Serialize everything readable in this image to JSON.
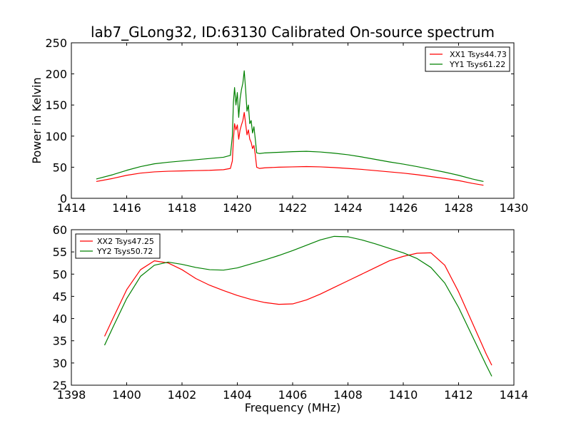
{
  "chart_data": [
    {
      "type": "line",
      "title": "lab7_GLong32, ID:63130 Calibrated On-source spectrum",
      "xlabel": "",
      "ylabel": "Power in Kelvin",
      "xlim": [
        1414,
        1430
      ],
      "ylim": [
        0,
        250
      ],
      "xticks": [
        1414,
        1416,
        1418,
        1420,
        1422,
        1424,
        1426,
        1428,
        1430
      ],
      "yticks": [
        0,
        50,
        100,
        150,
        200,
        250
      ],
      "legend_position": "top-right",
      "series": [
        {
          "name": "XX1 Tsys44.73",
          "color": "#ff0000",
          "x": [
            1414.9,
            1415.5,
            1416.0,
            1416.5,
            1417.0,
            1417.5,
            1418.0,
            1418.5,
            1419.0,
            1419.5,
            1419.75,
            1419.82,
            1419.86,
            1419.9,
            1419.95,
            1420.0,
            1420.05,
            1420.1,
            1420.15,
            1420.2,
            1420.25,
            1420.3,
            1420.35,
            1420.4,
            1420.45,
            1420.5,
            1420.55,
            1420.6,
            1420.65,
            1420.7,
            1420.8,
            1421.0,
            1421.5,
            1422.0,
            1422.5,
            1423.0,
            1423.5,
            1424.0,
            1424.5,
            1425.0,
            1425.5,
            1426.0,
            1426.5,
            1427.0,
            1427.5,
            1428.0,
            1428.5,
            1428.9
          ],
          "y": [
            27,
            32,
            37,
            40.5,
            42.5,
            43.5,
            44,
            44.5,
            45,
            46,
            48,
            60,
            95,
            120,
            110,
            118,
            95,
            110,
            118,
            125,
            138,
            120,
            102,
            110,
            95,
            90,
            80,
            85,
            70,
            50,
            48,
            49,
            50,
            50.5,
            51,
            50.5,
            49.5,
            48,
            46.5,
            44.5,
            42.5,
            40.5,
            38,
            35,
            32,
            28.5,
            24,
            21
          ]
        },
        {
          "name": "YY1 Tsys61.22",
          "color": "#008000",
          "x": [
            1414.9,
            1415.5,
            1416.0,
            1416.5,
            1417.0,
            1417.5,
            1418.0,
            1418.5,
            1419.0,
            1419.5,
            1419.75,
            1419.82,
            1419.86,
            1419.9,
            1419.95,
            1420.0,
            1420.05,
            1420.1,
            1420.15,
            1420.2,
            1420.25,
            1420.3,
            1420.35,
            1420.4,
            1420.45,
            1420.5,
            1420.55,
            1420.6,
            1420.65,
            1420.7,
            1420.8,
            1421.0,
            1421.5,
            1422.0,
            1422.5,
            1423.0,
            1423.5,
            1424.0,
            1424.5,
            1425.0,
            1425.5,
            1426.0,
            1426.5,
            1427.0,
            1427.5,
            1428.0,
            1428.5,
            1428.9
          ],
          "y": [
            31,
            38,
            45,
            51,
            55.5,
            58,
            60,
            62,
            64,
            66,
            69,
            100,
            155,
            178,
            150,
            170,
            130,
            160,
            175,
            185,
            205,
            175,
            140,
            150,
            120,
            125,
            105,
            115,
            95,
            73,
            72,
            73,
            74,
            75,
            75.5,
            74.5,
            72.5,
            70,
            66.5,
            62.5,
            58.5,
            55,
            51,
            46.5,
            42,
            37,
            31,
            27
          ]
        }
      ]
    },
    {
      "type": "line",
      "title": "",
      "xlabel": "Frequency (MHz)",
      "ylabel": "",
      "xlim": [
        1398,
        1414
      ],
      "ylim": [
        25,
        60
      ],
      "xticks": [
        1398,
        1400,
        1402,
        1404,
        1406,
        1408,
        1410,
        1412,
        1414
      ],
      "yticks": [
        25,
        30,
        35,
        40,
        45,
        50,
        55,
        60
      ],
      "legend_position": "top-left",
      "series": [
        {
          "name": "XX2 Tsys47.25",
          "color": "#ff0000",
          "x": [
            1399.2,
            1399.5,
            1400.0,
            1400.5,
            1401.0,
            1401.5,
            1402.0,
            1402.5,
            1403.0,
            1403.5,
            1404.0,
            1404.5,
            1405.0,
            1405.5,
            1406.0,
            1406.5,
            1407.0,
            1407.5,
            1408.0,
            1408.5,
            1409.0,
            1409.5,
            1410.0,
            1410.5,
            1411.0,
            1411.5,
            1412.0,
            1412.5,
            1413.0,
            1413.2
          ],
          "y": [
            36,
            40,
            46.5,
            51,
            53,
            52.5,
            51,
            49,
            47.5,
            46.3,
            45.2,
            44.3,
            43.6,
            43.2,
            43.3,
            44.2,
            45.5,
            47,
            48.5,
            50,
            51.5,
            53,
            54,
            54.7,
            54.8,
            52,
            46,
            39,
            32,
            29.5
          ]
        },
        {
          "name": "YY2 Tsys50.72",
          "color": "#008000",
          "x": [
            1399.2,
            1399.5,
            1400.0,
            1400.5,
            1401.0,
            1401.5,
            1402.0,
            1402.5,
            1403.0,
            1403.5,
            1404.0,
            1404.5,
            1405.0,
            1405.5,
            1406.0,
            1406.5,
            1407.0,
            1407.5,
            1408.0,
            1408.5,
            1409.0,
            1409.5,
            1410.0,
            1410.5,
            1411.0,
            1411.5,
            1412.0,
            1412.5,
            1413.0,
            1413.2
          ],
          "y": [
            34,
            38,
            44.5,
            49.5,
            52,
            52.7,
            52.2,
            51.5,
            51,
            50.9,
            51.4,
            52.3,
            53.2,
            54.2,
            55.3,
            56.5,
            57.7,
            58.5,
            58.4,
            57.7,
            56.8,
            55.8,
            54.8,
            53.5,
            51.5,
            48,
            42.5,
            36,
            29.5,
            27
          ]
        }
      ]
    }
  ]
}
